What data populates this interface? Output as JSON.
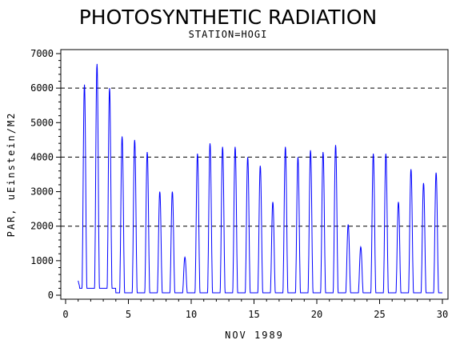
{
  "chart_data": {
    "type": "line",
    "title": "PHOTOSYNTHETIC RADIATION",
    "subtitle": "STATION=HOGI",
    "xlabel": "NOV 1989",
    "ylabel": "PAR, uEinstein/M2",
    "xlim": [
      0,
      30
    ],
    "ylim": [
      0,
      7000
    ],
    "x_ticks": [
      0,
      5,
      10,
      15,
      20,
      25,
      30
    ],
    "y_ticks": [
      0,
      1000,
      2000,
      3000,
      4000,
      5000,
      6000,
      7000
    ],
    "reference_lines": [
      2000,
      4000,
      6000
    ],
    "line_color": "#0000ff",
    "series": [
      {
        "name": "",
        "daily_peaks": [
          {
            "day": 1,
            "peak": 6100
          },
          {
            "day": 2,
            "peak": 6700
          },
          {
            "day": 3,
            "peak": 6000
          },
          {
            "day": 4,
            "peak": 4600
          },
          {
            "day": 5,
            "peak": 4500
          },
          {
            "day": 6,
            "peak": 4150
          },
          {
            "day": 7,
            "peak": 3000
          },
          {
            "day": 8,
            "peak": 3000
          },
          {
            "day": 9,
            "peak": 1100
          },
          {
            "day": 10,
            "peak": 4100
          },
          {
            "day": 11,
            "peak": 4400
          },
          {
            "day": 12,
            "peak": 4300
          },
          {
            "day": 13,
            "peak": 4300
          },
          {
            "day": 14,
            "peak": 4000
          },
          {
            "day": 15,
            "peak": 3750
          },
          {
            "day": 16,
            "peak": 2700
          },
          {
            "day": 17,
            "peak": 4300
          },
          {
            "day": 18,
            "peak": 4000
          },
          {
            "day": 19,
            "peak": 4200
          },
          {
            "day": 20,
            "peak": 4150
          },
          {
            "day": 21,
            "peak": 4350
          },
          {
            "day": 22,
            "peak": 2050
          },
          {
            "day": 23,
            "peak": 1400
          },
          {
            "day": 24,
            "peak": 4100
          },
          {
            "day": 25,
            "peak": 4100
          },
          {
            "day": 26,
            "peak": 2700
          },
          {
            "day": 27,
            "peak": 3650
          },
          {
            "day": 28,
            "peak": 3250
          },
          {
            "day": 29,
            "peak": 3550
          }
        ]
      }
    ]
  }
}
